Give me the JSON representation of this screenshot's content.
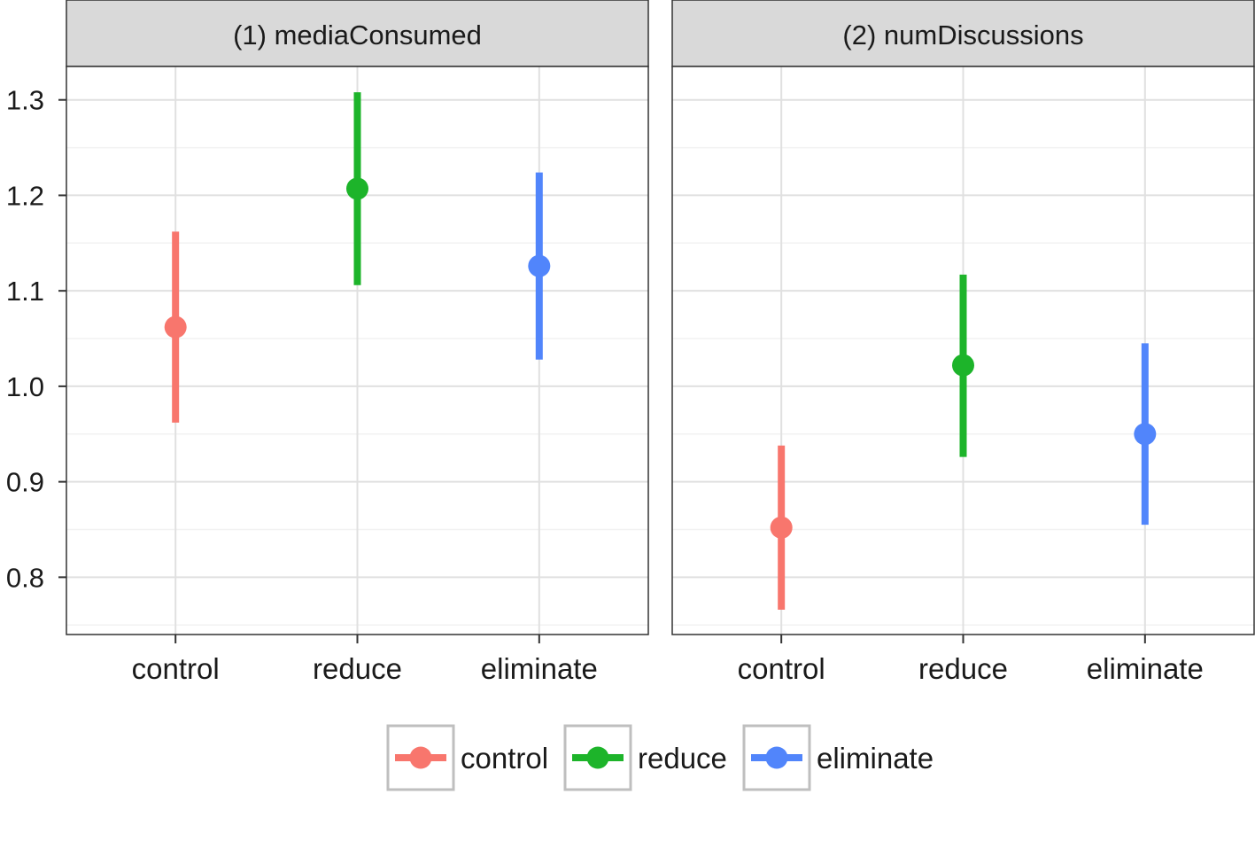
{
  "chart_data": {
    "type": "pointrange",
    "facets": [
      {
        "strip_label": "(1) mediaConsumed",
        "categories": [
          "control",
          "reduce",
          "eliminate"
        ],
        "points": [
          {
            "category": "control",
            "estimate": 1.062,
            "lower": 0.962,
            "upper": 1.162
          },
          {
            "category": "reduce",
            "estimate": 1.207,
            "lower": 1.106,
            "upper": 1.308
          },
          {
            "category": "eliminate",
            "estimate": 1.126,
            "lower": 1.028,
            "upper": 1.224
          }
        ]
      },
      {
        "strip_label": "(2) numDiscussions",
        "categories": [
          "control",
          "reduce",
          "eliminate"
        ],
        "points": [
          {
            "category": "control",
            "estimate": 0.852,
            "lower": 0.766,
            "upper": 0.938
          },
          {
            "category": "reduce",
            "estimate": 1.022,
            "lower": 0.926,
            "upper": 1.117
          },
          {
            "category": "eliminate",
            "estimate": 0.95,
            "lower": 0.855,
            "upper": 1.045
          }
        ]
      }
    ],
    "y_axis": {
      "ylim": [
        0.74,
        1.335
      ],
      "ticks": [
        0.8,
        0.9,
        1.0,
        1.1,
        1.2,
        1.3
      ],
      "tick_labels": [
        "0.8",
        "0.9",
        "1.0",
        "1.1",
        "1.2",
        "1.3"
      ],
      "shared": true
    },
    "legend": {
      "position": "bottom",
      "entries": [
        {
          "label": "control",
          "color": "#F8766D"
        },
        {
          "label": "reduce",
          "color": "#1DB42A"
        },
        {
          "label": "eliminate",
          "color": "#5185FB"
        }
      ]
    },
    "colors": {
      "control": "#F8766D",
      "reduce": "#1DB42A",
      "eliminate": "#5185FB"
    },
    "grid": true,
    "theme": "bw"
  }
}
